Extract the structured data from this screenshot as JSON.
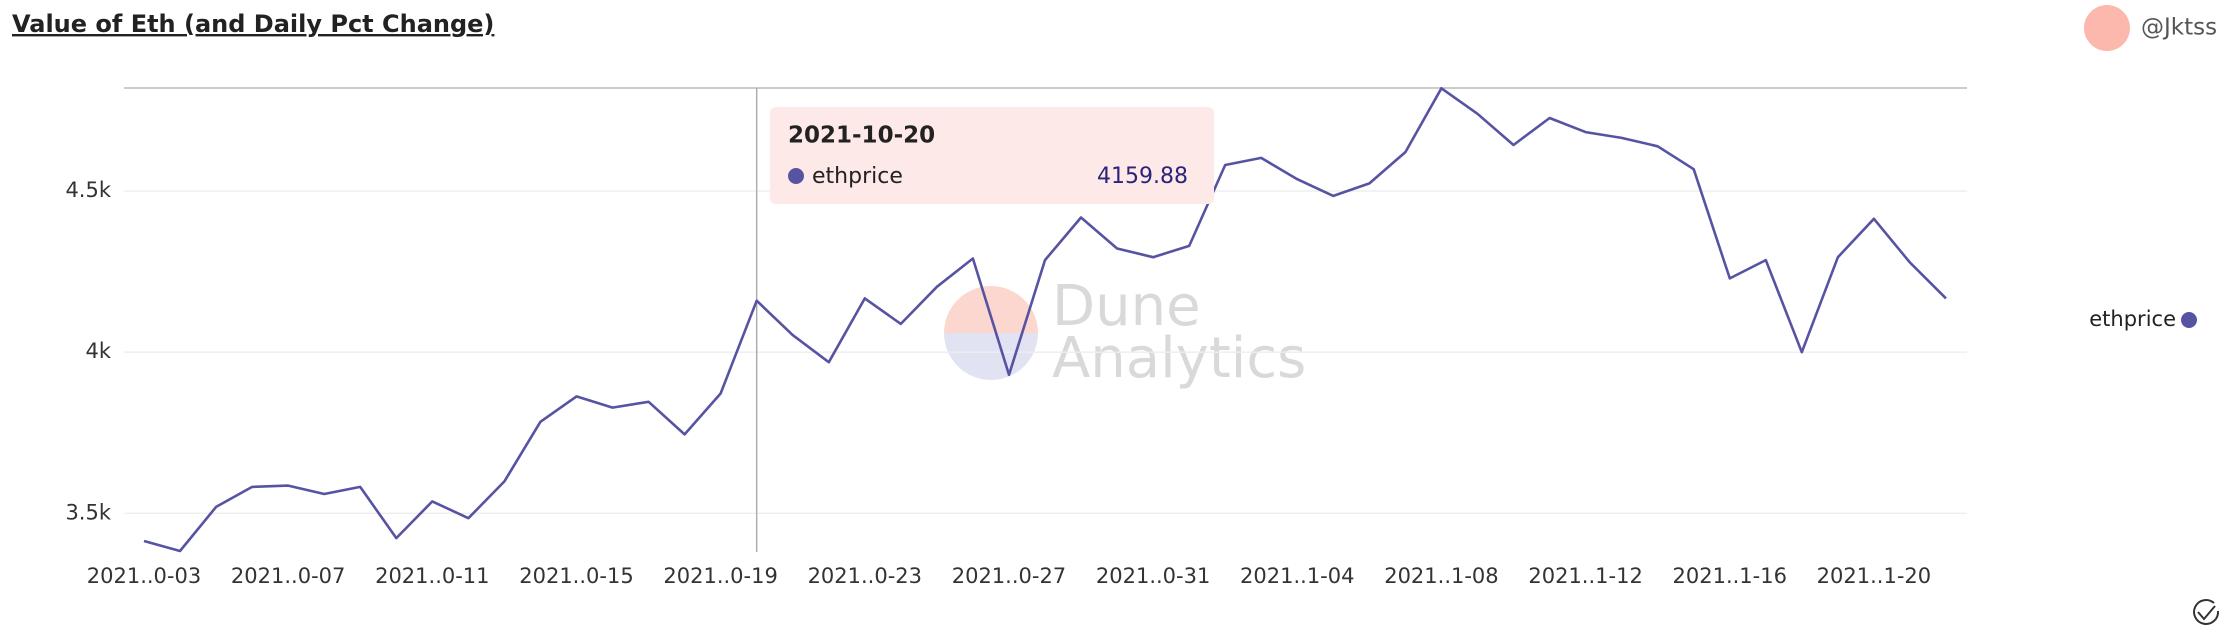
{
  "chart_data": {
    "type": "line",
    "title": "Value of Eth (and Daily Pct Change)",
    "user": "@Jktss",
    "watermark": [
      "Dune",
      "Analytics"
    ],
    "x": [
      "2021-10-03",
      "2021-10-04",
      "2021-10-05",
      "2021-10-06",
      "2021-10-07",
      "2021-10-08",
      "2021-10-09",
      "2021-10-10",
      "2021-10-11",
      "2021-10-12",
      "2021-10-13",
      "2021-10-14",
      "2021-10-15",
      "2021-10-16",
      "2021-10-17",
      "2021-10-18",
      "2021-10-19",
      "2021-10-20",
      "2021-10-21",
      "2021-10-22",
      "2021-10-23",
      "2021-10-24",
      "2021-10-25",
      "2021-10-26",
      "2021-10-27",
      "2021-10-28",
      "2021-10-29",
      "2021-10-30",
      "2021-10-31",
      "2021-11-01",
      "2021-11-02",
      "2021-11-03",
      "2021-11-04",
      "2021-11-05",
      "2021-11-06",
      "2021-11-07",
      "2021-11-08",
      "2021-11-09",
      "2021-11-10",
      "2021-11-11",
      "2021-11-12",
      "2021-11-13",
      "2021-11-14",
      "2021-11-15",
      "2021-11-16",
      "2021-11-17",
      "2021-11-18",
      "2021-11-19",
      "2021-11-20",
      "2021-11-21",
      "2021-11-22"
    ],
    "series": [
      {
        "name": "ethprice",
        "color": "#5654a2",
        "values": [
          3414,
          3383,
          3520,
          3582,
          3586,
          3560,
          3582,
          3423,
          3537,
          3485,
          3599,
          3784,
          3863,
          3828,
          3846,
          3745,
          3872,
          4159.88,
          4053,
          3969,
          4167,
          4088,
          4203,
          4291,
          3930,
          4286,
          4418,
          4322,
          4295,
          4330,
          4581,
          4603,
          4537,
          4485,
          4524,
          4621,
          4819,
          4740,
          4643,
          4727,
          4683,
          4665,
          4639,
          4568,
          4229,
          4286,
          4000,
          4295,
          4414,
          4278,
          4167
        ]
      }
    ],
    "tooltip_index": 17,
    "ylim": [
      3380,
      4820
    ],
    "yticks": [
      {
        "value": 3500,
        "label": "3.5k"
      },
      {
        "value": 4000,
        "label": "4k"
      },
      {
        "value": 4500,
        "label": "4.5k"
      }
    ],
    "xticks": [
      {
        "value": "2021-10-03",
        "label": "2021..0-03"
      },
      {
        "value": "2021-10-07",
        "label": "2021..0-07"
      },
      {
        "value": "2021-10-11",
        "label": "2021..0-11"
      },
      {
        "value": "2021-10-15",
        "label": "2021..0-15"
      },
      {
        "value": "2021-10-19",
        "label": "2021..0-19"
      },
      {
        "value": "2021-10-23",
        "label": "2021..0-23"
      },
      {
        "value": "2021-10-27",
        "label": "2021..0-27"
      },
      {
        "value": "2021-10-31",
        "label": "2021..0-31"
      },
      {
        "value": "2021-11-04",
        "label": "2021..1-04"
      },
      {
        "value": "2021-11-08",
        "label": "2021..1-08"
      },
      {
        "value": "2021-11-12",
        "label": "2021..1-12"
      },
      {
        "value": "2021-11-16",
        "label": "2021..1-16"
      },
      {
        "value": "2021-11-20",
        "label": "2021..1-20"
      }
    ],
    "grid": true,
    "legend": "right"
  }
}
